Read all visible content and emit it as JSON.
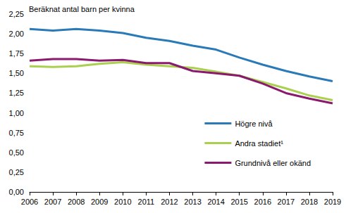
{
  "chart_data": {
    "type": "line",
    "title": "Beräknat antal barn per kvinna",
    "categories": [
      "2006",
      "2007",
      "2008",
      "2009",
      "2010",
      "2011",
      "2012",
      "2013",
      "2014",
      "2015",
      "2016",
      "2017",
      "2018",
      "2019"
    ],
    "series": [
      {
        "name": "Högre nivå",
        "color": "#2a7ab8",
        "values": [
          2.06,
          2.04,
          2.06,
          2.04,
          2.01,
          1.95,
          1.91,
          1.85,
          1.8,
          1.7,
          1.61,
          1.53,
          1.46,
          1.4
        ]
      },
      {
        "name": "Andra stadiet¹",
        "color": "#a9d04e",
        "values": [
          1.59,
          1.58,
          1.59,
          1.62,
          1.64,
          1.61,
          1.59,
          1.57,
          1.52,
          1.47,
          1.39,
          1.31,
          1.22,
          1.16
        ]
      },
      {
        "name": "Grundnivå eller okänd",
        "color": "#8a1a6e",
        "values": [
          1.66,
          1.68,
          1.68,
          1.66,
          1.67,
          1.63,
          1.63,
          1.53,
          1.5,
          1.47,
          1.37,
          1.25,
          1.18,
          1.12
        ]
      }
    ],
    "ylim": [
      0,
      2.25
    ],
    "yticks": [
      {
        "value": 0,
        "label": "0,00"
      },
      {
        "value": 0.25,
        "label": "0,25"
      },
      {
        "value": 0.5,
        "label": "0,50"
      },
      {
        "value": 0.75,
        "label": "0,75"
      },
      {
        "value": 1,
        "label": "1,00"
      },
      {
        "value": 1.25,
        "label": "1,25"
      },
      {
        "value": 1.5,
        "label": "1,50"
      },
      {
        "value": 1.75,
        "label": "1,75"
      },
      {
        "value": 2,
        "label": "2,00"
      },
      {
        "value": 2.25,
        "label": "2,25"
      }
    ],
    "grid": false,
    "legend": "right"
  }
}
